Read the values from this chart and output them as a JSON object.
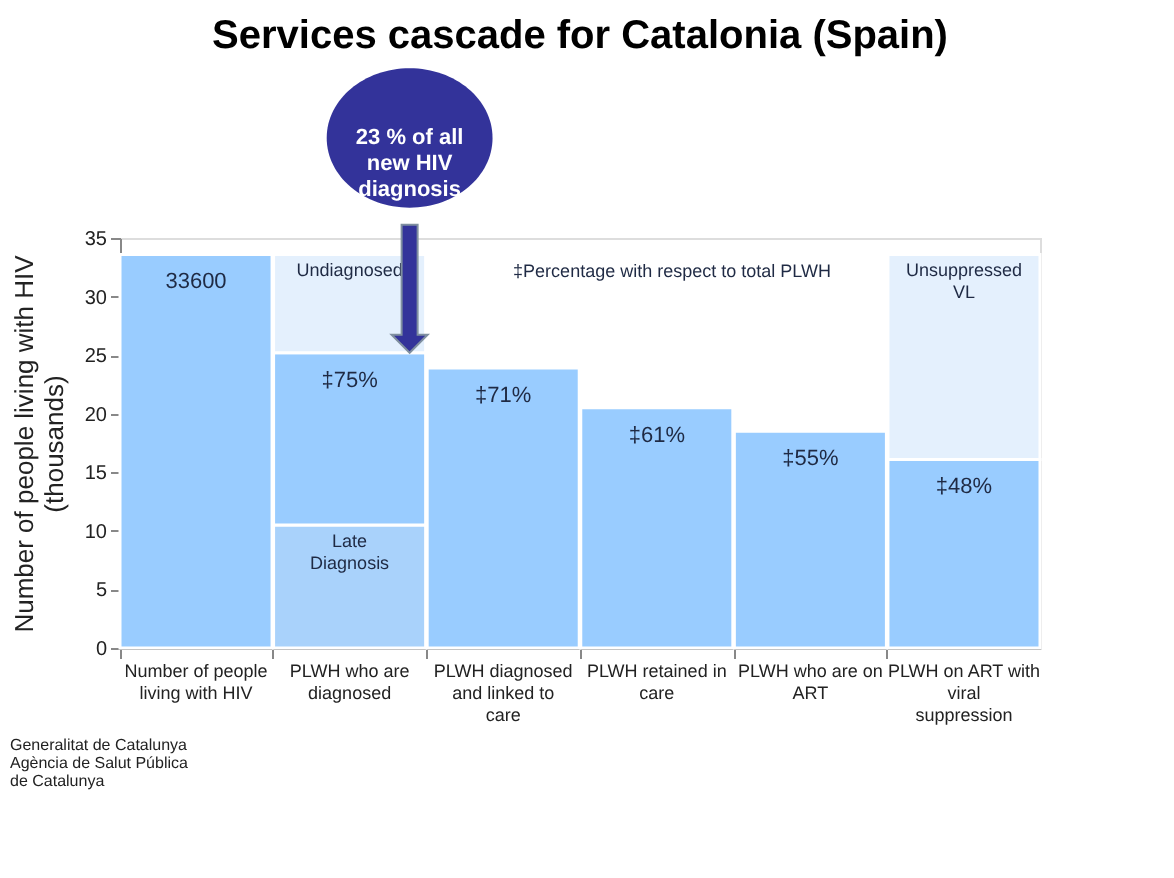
{
  "chart_data": {
    "type": "bar",
    "title": "Services cascade for Catalonia (Spain)",
    "ylabel": "Number of people living with HIV (thousands)",
    "categories": [
      "Number of people living with HIV",
      "PLWH who are diagnosed",
      "PLWH diagnosed and linked to care",
      "PLWH retained in care",
      "PLWH who are on ART",
      "PLWH on ART with viral suppression"
    ],
    "stacked": true,
    "series": [
      {
        "name": "Late Diagnosis",
        "color": "#a9d2fb",
        "values": [
          null,
          10.5,
          null,
          null,
          null,
          null
        ]
      },
      {
        "color": "#99ccff",
        "values": [
          33.6,
          14.7,
          23.9,
          20.5,
          18.5,
          16.1
        ]
      },
      {
        "name": "Undiagnosed",
        "color": "#e4f0fd",
        "values": [
          null,
          8.4,
          null,
          null,
          null,
          null
        ]
      },
      {
        "name": "Unsuppressed VL",
        "color": "#e4f0fd",
        "values": [
          null,
          null,
          null,
          null,
          null,
          17.5
        ]
      }
    ],
    "ylim": [
      0,
      35
    ],
    "yticks": [
      0,
      5,
      10,
      15,
      20,
      25,
      30,
      35
    ],
    "grid": false,
    "annotations": [
      "23 % of all new HIV diagnosis",
      "‡Percentage with respect to total PLWH",
      "Generalitat de Catalunya Agència de Salut Pública de Catalunya",
      {
        "text": "33600",
        "x": "Number of people living with HIV",
        "y": 33.6
      },
      {
        "text": "‡75%",
        "x": "PLWH who are diagnosed",
        "y": 25.2
      },
      {
        "text": "‡71%",
        "x": "PLWH diagnosed and linked to care",
        "y": 23.9
      },
      {
        "text": "‡61%",
        "x": "PLWH retained in care",
        "y": 20.5
      },
      {
        "text": "‡55%",
        "x": "PLWH who are on ART",
        "y": 18.5
      },
      {
        "text": "‡48%",
        "x": "PLWH on ART with viral suppression",
        "y": 16.1
      }
    ]
  }
}
